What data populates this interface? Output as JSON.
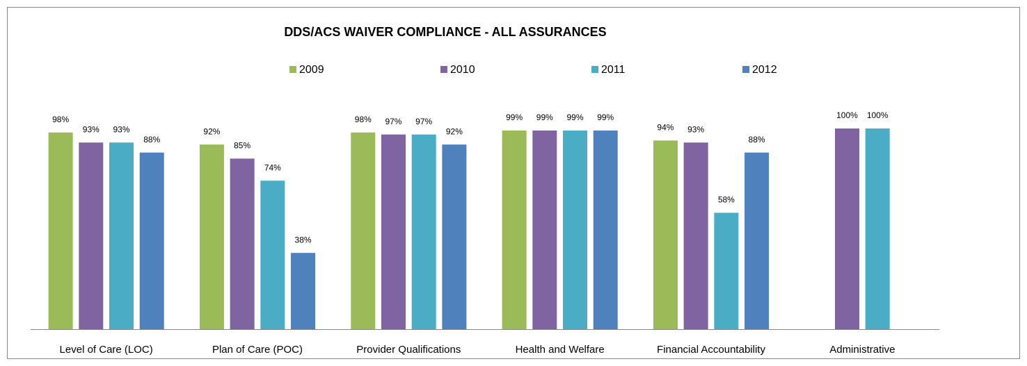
{
  "chart_data": {
    "type": "bar",
    "title": "DDS/ACS WAIVER COMPLIANCE - ALL ASSURANCES",
    "categories": [
      "Level of Care (LOC)",
      "Plan of Care (POC)",
      "Provider Qualifications",
      "Health and Welfare",
      "Financial Accountability",
      "Administrative"
    ],
    "series": [
      {
        "name": "2009",
        "color": "#9bbb59",
        "values": [
          98,
          92,
          98,
          99,
          94,
          null
        ],
        "value_labels": [
          "98%",
          "92%",
          "98%",
          "99%",
          "94%",
          null
        ]
      },
      {
        "name": "2010",
        "color": "#8064a2",
        "values": [
          93,
          85,
          97,
          99,
          93,
          100
        ],
        "value_labels": [
          "93%",
          "85%",
          "97%",
          "99%",
          "93%",
          "100%"
        ]
      },
      {
        "name": "2011",
        "color": "#4bacc6",
        "values": [
          93,
          74,
          97,
          99,
          58,
          100
        ],
        "value_labels": [
          "93%",
          "74%",
          "97%",
          "99%",
          "58%",
          "100%"
        ]
      },
      {
        "name": "2012",
        "color": "#4f81bd",
        "values": [
          88,
          38,
          92,
          99,
          88,
          null
        ],
        "value_labels": [
          "88%",
          "38%",
          "92%",
          "99%",
          "88%",
          null
        ]
      }
    ],
    "ylim": [
      0,
      100
    ],
    "legend": "top"
  }
}
